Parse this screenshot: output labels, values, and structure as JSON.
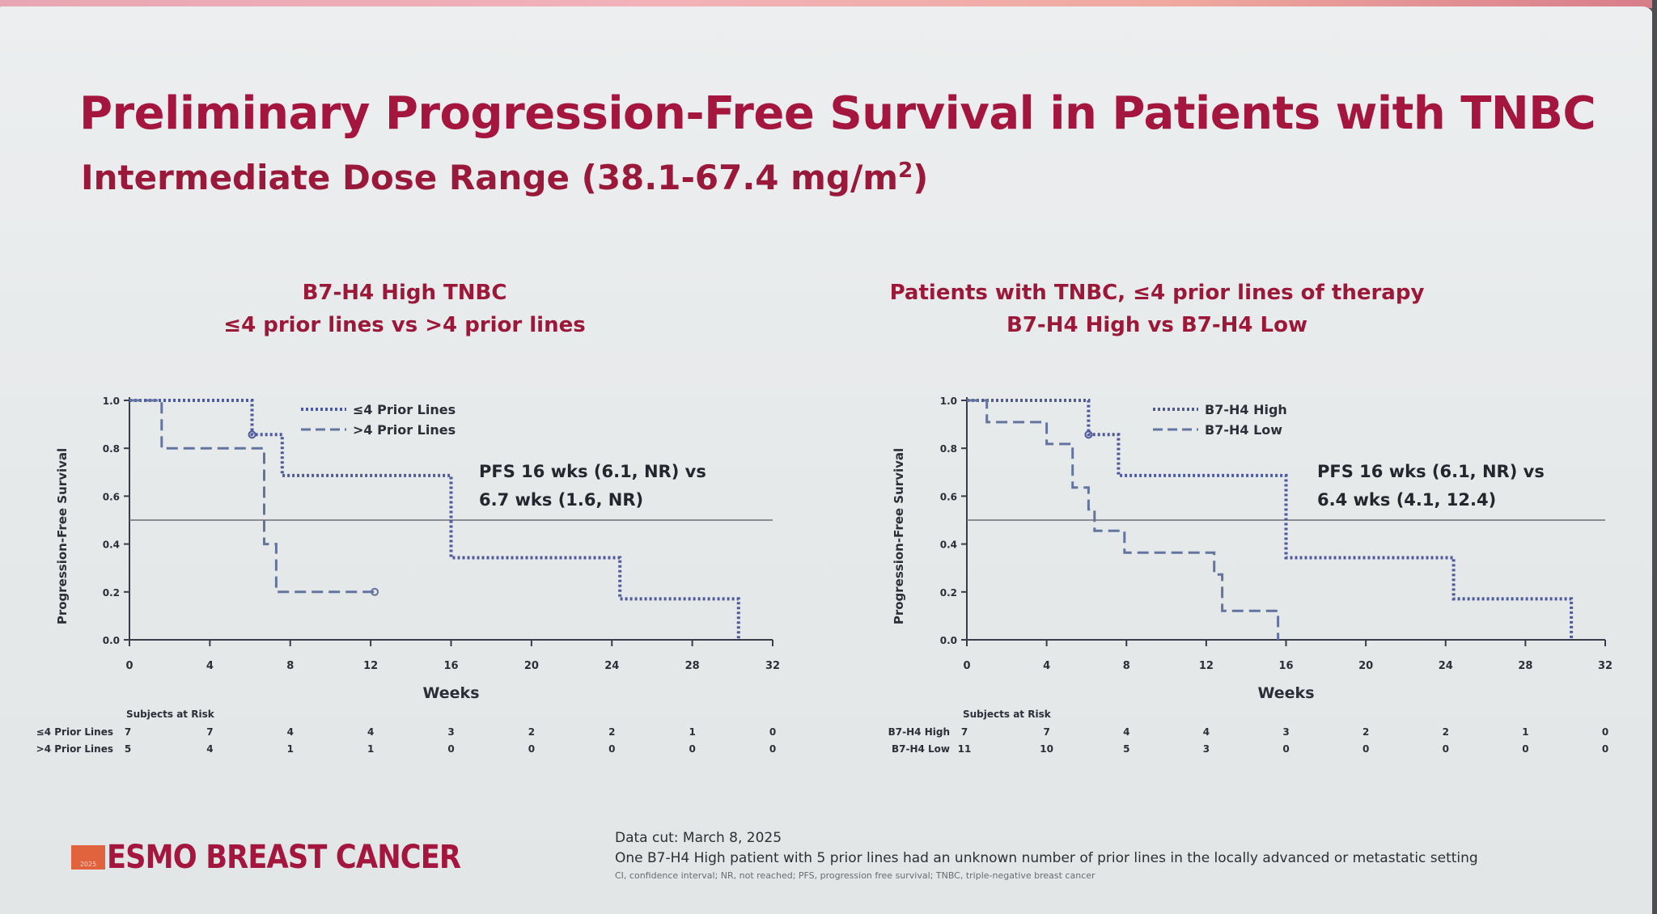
{
  "slide": {
    "title": "Preliminary Progression-Free Survival in Patients with TNBC",
    "subtitle_main": "Intermediate Dose Range (38.1-67.4 mg/m",
    "subtitle_sup": "2",
    "subtitle_end": ")",
    "colors": {
      "title": "#a4163d",
      "series_solid": "#4e5a9c",
      "series_dashed": "#63749f",
      "axis": "#3a3d48"
    }
  },
  "footer": {
    "logo_text": "ESMO BREAST CANCER",
    "logo_year": "2025",
    "note_datacut": "Data cut: March 8, 2025",
    "note_patient": "One B7-H4 High patient with 5 prior lines had an unknown number of prior lines in the locally advanced or metastatic setting",
    "note_abbrev": "CI, confidence interval; NR, not reached; PFS, progression free survival; TNBC, triple-negative breast cancer"
  },
  "chart_data": [
    {
      "type": "line",
      "heading": [
        "B7-H4 High TNBC",
        "≤4 prior lines vs >4 prior lines"
      ],
      "xlabel": "Weeks",
      "ylabel": "Progression-Free Survival",
      "xlim": [
        0,
        32
      ],
      "ylim": [
        0,
        1
      ],
      "x_ticks": [
        "0",
        "4",
        "8",
        "12",
        "16",
        "20",
        "24",
        "28",
        "32"
      ],
      "y_ticks": [
        "0.0",
        "0.2",
        "0.4",
        "0.6",
        "0.8",
        "1.0"
      ],
      "reference_line": 0.5,
      "legend_position": "top-center",
      "annotation": [
        "PFS 16 wks (6.1, NR) vs",
        "6.7 wks (1.6, NR)"
      ],
      "series": [
        {
          "name": "≤4 Prior Lines",
          "style": "dotted",
          "points": [
            [
              0,
              1
            ],
            [
              6.1,
              1
            ],
            [
              6.1,
              0.857
            ],
            [
              7.6,
              0.857
            ],
            [
              7.6,
              0.686
            ],
            [
              16,
              0.686
            ],
            [
              16,
              0.343
            ],
            [
              24.4,
              0.343
            ],
            [
              24.4,
              0.171
            ],
            [
              30.3,
              0.171
            ],
            [
              30.3,
              0
            ]
          ],
          "censored": [
            [
              6.1,
              0.857
            ]
          ]
        },
        {
          "name": ">4 Prior Lines",
          "style": "dashed",
          "points": [
            [
              0,
              1
            ],
            [
              1.6,
              1
            ],
            [
              1.6,
              0.8
            ],
            [
              6.7,
              0.8
            ],
            [
              6.7,
              0.4
            ],
            [
              7.3,
              0.4
            ],
            [
              7.3,
              0.2
            ],
            [
              12.2,
              0.2
            ]
          ],
          "censored": [
            [
              12.2,
              0.2
            ]
          ]
        }
      ],
      "risk_table": {
        "header": "Subjects at Risk",
        "rows": [
          {
            "label": "≤4 Prior Lines",
            "values": [
              "7",
              "7",
              "4",
              "4",
              "3",
              "2",
              "2",
              "1",
              "0"
            ]
          },
          {
            "label": ">4 Prior Lines",
            "values": [
              "5",
              "4",
              "1",
              "1",
              "0",
              "0",
              "0",
              "0",
              "0"
            ]
          }
        ]
      }
    },
    {
      "type": "line",
      "heading": [
        "Patients with TNBC, ≤4 prior lines of therapy",
        "B7-H4 High vs B7-H4 Low"
      ],
      "xlabel": "Weeks",
      "ylabel": "Progression-Free Survival",
      "xlim": [
        0,
        32
      ],
      "ylim": [
        0,
        1
      ],
      "x_ticks": [
        "0",
        "4",
        "8",
        "12",
        "16",
        "20",
        "24",
        "28",
        "32"
      ],
      "y_ticks": [
        "0.0",
        "0.2",
        "0.4",
        "0.6",
        "0.8",
        "1.0"
      ],
      "reference_line": 0.5,
      "legend_position": "top-center",
      "annotation": [
        "PFS 16 wks (6.1, NR) vs",
        "6.4 wks (4.1, 12.4)"
      ],
      "series": [
        {
          "name": "B7-H4 High",
          "style": "dotted",
          "points": [
            [
              0,
              1
            ],
            [
              6.1,
              1
            ],
            [
              6.1,
              0.857
            ],
            [
              7.6,
              0.857
            ],
            [
              7.6,
              0.686
            ],
            [
              16,
              0.686
            ],
            [
              16,
              0.343
            ],
            [
              24.4,
              0.343
            ],
            [
              24.4,
              0.171
            ],
            [
              30.3,
              0.171
            ],
            [
              30.3,
              0
            ]
          ],
          "censored": [
            [
              6.1,
              0.857
            ]
          ]
        },
        {
          "name": "B7-H4 Low",
          "style": "dashed",
          "points": [
            [
              0,
              1
            ],
            [
              1,
              1
            ],
            [
              1,
              0.909
            ],
            [
              4,
              0.909
            ],
            [
              4,
              0.818
            ],
            [
              5.3,
              0.818
            ],
            [
              5.3,
              0.636
            ],
            [
              6.1,
              0.636
            ],
            [
              6.1,
              0.545
            ],
            [
              6.4,
              0.545
            ],
            [
              6.4,
              0.455
            ],
            [
              7.9,
              0.455
            ],
            [
              7.9,
              0.364
            ],
            [
              12.4,
              0.364
            ],
            [
              12.4,
              0.273
            ],
            [
              12.8,
              0.273
            ],
            [
              12.8,
              0.121
            ],
            [
              15.6,
              0.121
            ],
            [
              15.6,
              0
            ]
          ],
          "censored": []
        }
      ],
      "risk_table": {
        "header": "Subjects at Risk",
        "rows": [
          {
            "label": "B7-H4 High",
            "values": [
              "7",
              "7",
              "4",
              "4",
              "3",
              "2",
              "2",
              "1",
              "0"
            ]
          },
          {
            "label": "B7-H4 Low",
            "values": [
              "11",
              "10",
              "5",
              "3",
              "0",
              "0",
              "0",
              "0",
              "0"
            ]
          }
        ]
      }
    }
  ]
}
